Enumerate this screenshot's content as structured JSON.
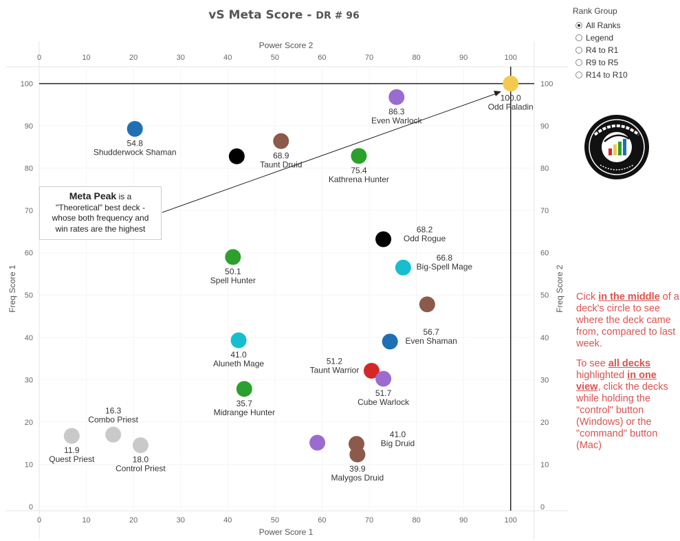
{
  "title": {
    "main": "vS Meta Score",
    "sub": "DR # 96"
  },
  "rank_group": {
    "title": "Rank Group",
    "options": [
      {
        "label": "All Ranks",
        "selected": true
      },
      {
        "label": "Legend",
        "selected": false
      },
      {
        "label": "R4 to R1",
        "selected": false
      },
      {
        "label": "R9 to R5",
        "selected": false
      },
      {
        "label": "R14 to R10",
        "selected": false
      }
    ]
  },
  "logo": {
    "text": "DATA REAPER REPORT",
    "subtext": "Vicious Syndicate Presents"
  },
  "annotation": {
    "bold": "Meta Peak",
    "line1_rest": "is a",
    "line2": "\"Theoretical\" best deck -",
    "line3": "whose both frequency and",
    "line4": "win rates are the highest"
  },
  "instructions": {
    "p1_a": "Cick ",
    "p1_b": "in the middle",
    "p1_c": " of a deck's circle to see where the deck came from, compared to last week.",
    "p2_a": "To see ",
    "p2_b": "all decks",
    "p2_c": " highlighted ",
    "p2_d": "in one view",
    "p2_e": ", click the decks while holding the \"control\" button (Windows) or the \"command\" button (Mac)"
  },
  "chart_data": {
    "type": "scatter",
    "xlabel_top": "Power Score 2",
    "xlabel_bottom": "Power Score 1",
    "ylabel_left": "Freq Score 1",
    "ylabel_right": "Freq Score 2",
    "xlim": [
      0,
      105
    ],
    "ylim": [
      -1,
      104
    ],
    "x_ticks": [
      0,
      10,
      20,
      30,
      40,
      50,
      60,
      70,
      80,
      90,
      100
    ],
    "y_ticks": [
      0,
      10,
      20,
      30,
      40,
      50,
      60,
      70,
      80,
      90,
      100
    ],
    "meta_peak": {
      "x": 100,
      "y": 100
    },
    "colors": {
      "paladin": "#f5c94e",
      "warlock": "#9b6ccf",
      "shaman": "#1f6fb5",
      "druid": "#8b5a4a",
      "hunter": "#2ca02c",
      "rogue": "#000000",
      "mage": "#17becf",
      "warrior": "#d62728",
      "priest": "#c9c9c9"
    },
    "points": [
      {
        "name": "Odd Paladin",
        "score": "100.0",
        "x": 100,
        "y": 100,
        "color": "#f5c94e",
        "label_pos": "below"
      },
      {
        "name": "Even Warlock",
        "score": "86.3",
        "x": 75.8,
        "y": 96.8,
        "color": "#9b6ccf",
        "label_pos": "below"
      },
      {
        "name": "Shudderwock Shaman",
        "score": "54.8",
        "x": 20.3,
        "y": 89.3,
        "color": "#1f6fb5",
        "label_pos": "below"
      },
      {
        "name": "",
        "score": "",
        "x": 41.9,
        "y": 82.8,
        "color": "#000000",
        "label_pos": "none"
      },
      {
        "name": "Taunt Druid",
        "score": "68.9",
        "x": 51.3,
        "y": 86.4,
        "color": "#8b5a4a",
        "label_pos": "below"
      },
      {
        "name": "Kathrena Hunter",
        "score": "75.4",
        "x": 67.8,
        "y": 82.9,
        "color": "#2ca02c",
        "label_pos": "below"
      },
      {
        "name": "Odd Rogue",
        "score": "68.2",
        "x": 73.0,
        "y": 63.2,
        "color": "#000000",
        "label_pos": "right"
      },
      {
        "name": "Spell Hunter",
        "score": "50.1",
        "x": 41.1,
        "y": 59.0,
        "color": "#2ca02c",
        "label_pos": "below"
      },
      {
        "name": "Big-Spell Mage",
        "score": "66.8",
        "x": 77.2,
        "y": 56.5,
        "color": "#17becf",
        "label_pos": "right"
      },
      {
        "name": "",
        "score": "",
        "x": 82.3,
        "y": 47.8,
        "color": "#8b5a4a",
        "label_pos": "none"
      },
      {
        "name": "Aluneth Mage",
        "score": "41.0",
        "x": 42.3,
        "y": 39.3,
        "color": "#17becf",
        "label_pos": "below"
      },
      {
        "name": "Even Shaman",
        "score": "56.7",
        "x": 74.4,
        "y": 39.0,
        "color": "#1f6fb5",
        "label_pos": "right"
      },
      {
        "name": "Taunt Warrior",
        "score": "51.2",
        "x": 70.5,
        "y": 32.1,
        "color": "#d62728",
        "label_pos": "left"
      },
      {
        "name": "Cube Warlock",
        "score": "51.7",
        "x": 73.0,
        "y": 30.2,
        "color": "#9b6ccf",
        "label_pos": "below"
      },
      {
        "name": "Midrange Hunter",
        "score": "35.7",
        "x": 43.5,
        "y": 27.8,
        "color": "#2ca02c",
        "label_pos": "below"
      },
      {
        "name": "Combo Priest",
        "score": "16.3",
        "x": 15.7,
        "y": 17.0,
        "color": "#c9c9c9",
        "label_pos": "above"
      },
      {
        "name": "Quest Priest",
        "score": "11.9",
        "x": 6.9,
        "y": 16.7,
        "color": "#c9c9c9",
        "label_pos": "below"
      },
      {
        "name": "Control Priest",
        "score": "18.0",
        "x": 21.5,
        "y": 14.5,
        "color": "#c9c9c9",
        "label_pos": "below"
      },
      {
        "name": "",
        "score": "",
        "x": 59.0,
        "y": 15.1,
        "color": "#9b6ccf",
        "label_pos": "none"
      },
      {
        "name": "Big Druid",
        "score": "41.0",
        "x": 67.3,
        "y": 14.8,
        "color": "#8b5a4a",
        "label_pos": "right"
      },
      {
        "name": "Malygos Druid",
        "score": "39.9",
        "x": 67.5,
        "y": 12.3,
        "color": "#8b5a4a",
        "label_pos": "below"
      }
    ]
  }
}
